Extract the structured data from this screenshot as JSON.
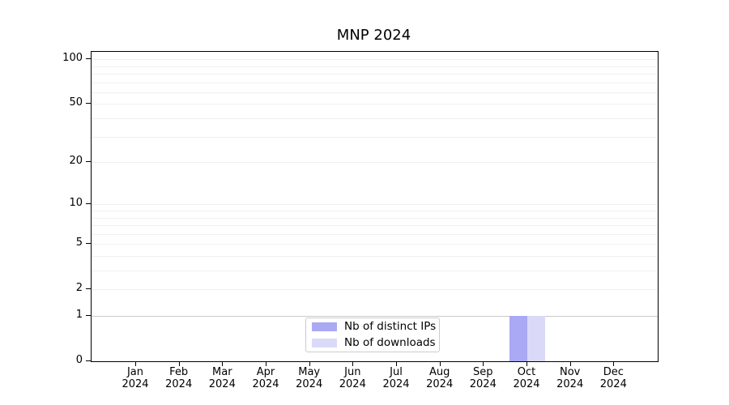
{
  "chart_data": {
    "type": "bar",
    "title": "MNP 2024",
    "categories": [
      "Jan",
      "Feb",
      "Mar",
      "Apr",
      "May",
      "Jun",
      "Jul",
      "Aug",
      "Sep",
      "Oct",
      "Nov",
      "Dec"
    ],
    "year": "2024",
    "series": [
      {
        "name": "Nb of distinct IPs",
        "color": "#a9a9f4",
        "values": [
          0,
          0,
          0,
          0,
          0,
          0,
          0,
          0,
          0,
          1,
          0,
          0
        ]
      },
      {
        "name": "Nb of downloads",
        "color": "#dadaf8",
        "values": [
          0,
          0,
          0,
          0,
          0,
          0,
          0,
          0,
          0,
          1,
          0,
          0
        ]
      }
    ],
    "yticks": [
      0,
      1,
      2,
      5,
      10,
      20,
      50,
      100
    ],
    "minor_grid_values": [
      2,
      3,
      4,
      5,
      6,
      7,
      8,
      9,
      10,
      20,
      30,
      40,
      50,
      60,
      70,
      80,
      90,
      100
    ],
    "major_grid_values": [
      1
    ],
    "ylim": [
      0,
      112
    ],
    "yscale": "log1p",
    "grid": true,
    "legend_position": "lower center",
    "colors": {
      "spine": "#000000",
      "minor_grid": "#f0f0f0",
      "major_grid": "#c9c9c9",
      "legend_border": "#cccccc",
      "background": "#ffffff"
    }
  }
}
